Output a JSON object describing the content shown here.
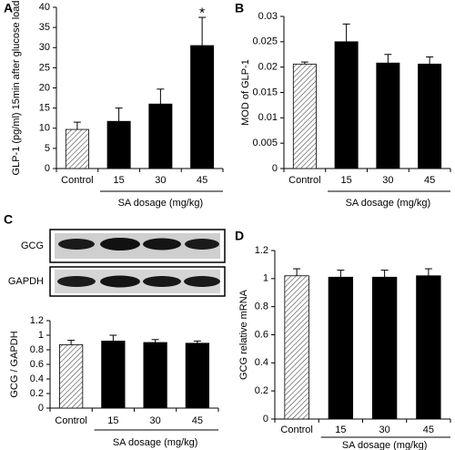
{
  "chart_data": [
    {
      "type": "bar",
      "panel": "A",
      "ylabel": "GLP-1 (pg/ml) 15min after glucose load",
      "xlabel": "SA dosage (mg/kg)",
      "categories": [
        "Control",
        "15",
        "30",
        "45"
      ],
      "values": [
        9.7,
        11.7,
        16,
        30.5
      ],
      "errors": [
        1.8,
        3.3,
        3.7,
        7
      ],
      "value_annotations": [
        null,
        null,
        null,
        "*"
      ],
      "patterns": [
        "hatch",
        "solid",
        "solid",
        "solid"
      ],
      "color": "#000000",
      "ylim": [
        0,
        40
      ],
      "yticks": [
        0,
        5,
        10,
        15,
        20,
        25,
        30,
        35,
        40
      ]
    },
    {
      "type": "bar",
      "panel": "B",
      "ylabel": "MOD of GLP-1",
      "xlabel": "SA dosage (mg/kg)",
      "categories": [
        "Control",
        "15",
        "30",
        "45"
      ],
      "values": [
        0.0206,
        0.025,
        0.0208,
        0.0206
      ],
      "errors": [
        0.0004,
        0.0035,
        0.0017,
        0.0014
      ],
      "patterns": [
        "hatch",
        "solid",
        "solid",
        "solid"
      ],
      "color": "#000000",
      "ylim": [
        0,
        0.03
      ],
      "yticks": [
        0,
        0.005,
        0.01,
        0.015,
        0.02,
        0.025,
        0.03
      ]
    },
    {
      "type": "bar",
      "panel": "C",
      "blot_labels": [
        "GCG",
        "GAPDH"
      ],
      "ylabel": "GCG / GAPDH",
      "xlabel": "SA dosage (mg/kg)",
      "categories": [
        "Control",
        "15",
        "30",
        "45"
      ],
      "values": [
        0.87,
        0.92,
        0.9,
        0.89
      ],
      "errors": [
        0.06,
        0.08,
        0.04,
        0.03
      ],
      "patterns": [
        "hatch",
        "solid",
        "solid",
        "solid"
      ],
      "color": "#000000",
      "ylim": [
        0,
        1.2
      ],
      "yticks": [
        0,
        0.2,
        0.4,
        0.6,
        0.8,
        1,
        1.2
      ]
    },
    {
      "type": "bar",
      "panel": "D",
      "ylabel": "GCG relative mRNA",
      "xlabel": "SA dosage (mg/kg)",
      "categories": [
        "Control",
        "15",
        "30",
        "45"
      ],
      "values": [
        1.02,
        1.01,
        1.01,
        1.02
      ],
      "errors": [
        0.05,
        0.05,
        0.05,
        0.05
      ],
      "patterns": [
        "hatch",
        "solid",
        "solid",
        "solid"
      ],
      "color": "#000000",
      "ylim": [
        0,
        1.2
      ],
      "yticks": [
        0,
        0.2,
        0.4,
        0.6,
        0.8,
        1,
        1.2
      ]
    }
  ]
}
